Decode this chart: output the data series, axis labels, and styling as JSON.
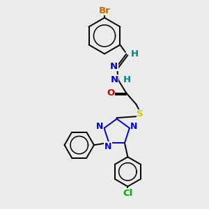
{
  "background_color": "#eeeeee",
  "bg_hex": "#ebebeb",
  "atom_colors": {
    "Br": "#cc6600",
    "N": "#0000cc",
    "O": "#cc0000",
    "S": "#cccc00",
    "H": "#008080",
    "Cl": "#00aa00",
    "C": "#000000"
  },
  "layout": {
    "figsize": [
      3.0,
      3.0
    ],
    "dpi": 100,
    "xlim": [
      0,
      1
    ],
    "ylim": [
      0,
      1
    ]
  }
}
